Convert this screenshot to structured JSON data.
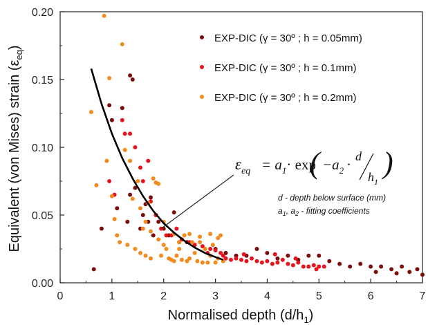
{
  "chart_data": {
    "type": "scatter",
    "xlabel": "Normalised depth (d/h",
    "xlabel_sub": "1",
    "xlabel_close": ")",
    "ylabel": "Equivalent (von Mises) strain (ε",
    "ylabel_sub": "eq",
    "ylabel_close": ")",
    "xlim": [
      0,
      7
    ],
    "ylim": [
      0,
      0.2
    ],
    "x_ticks": [
      "0",
      "1",
      "2",
      "3",
      "4",
      "5",
      "6",
      "7"
    ],
    "y_ticks": [
      "0.00",
      "0.05",
      "0.10",
      "0.15",
      "0.20"
    ],
    "legend_position": "top-right",
    "series": [
      {
        "name": "EXP-DIC (γ = 30º ; h = 0.05mm)",
        "color": "#7b0d0d",
        "points": [
          [
            0.65,
            0.01
          ],
          [
            0.8,
            0.04
          ],
          [
            0.95,
            0.131
          ],
          [
            1.0,
            0.12
          ],
          [
            1.1,
            0.055
          ],
          [
            1.2,
            0.129
          ],
          [
            1.3,
            0.045
          ],
          [
            1.35,
            0.153
          ],
          [
            1.4,
            0.15
          ],
          [
            1.35,
            0.065
          ],
          [
            1.45,
            0.07
          ],
          [
            1.55,
            0.04
          ],
          [
            1.6,
            0.05
          ],
          [
            1.65,
            0.058
          ],
          [
            1.7,
            0.045
          ],
          [
            1.75,
            0.063
          ],
          [
            1.8,
            0.035
          ],
          [
            1.85,
            0.05
          ],
          [
            1.9,
            0.045
          ],
          [
            2.0,
            0.04
          ],
          [
            2.1,
            0.035
          ],
          [
            2.2,
            0.052
          ],
          [
            2.3,
            0.03
          ],
          [
            2.45,
            0.03
          ],
          [
            2.6,
            0.028
          ],
          [
            2.8,
            0.025
          ],
          [
            3.0,
            0.025
          ],
          [
            3.2,
            0.022
          ],
          [
            3.4,
            0.02
          ],
          [
            3.6,
            0.02
          ],
          [
            3.8,
            0.025
          ],
          [
            4.0,
            0.022
          ],
          [
            4.2,
            0.018
          ],
          [
            4.4,
            0.02
          ],
          [
            4.6,
            0.017
          ],
          [
            4.8,
            0.02
          ],
          [
            5.0,
            0.02
          ],
          [
            5.2,
            0.016
          ],
          [
            5.4,
            0.014
          ],
          [
            5.6,
            0.012
          ],
          [
            5.8,
            0.014
          ],
          [
            6.0,
            0.012
          ],
          [
            6.2,
            0.012
          ],
          [
            6.4,
            0.01
          ],
          [
            6.6,
            0.012
          ],
          [
            6.75,
            0.008
          ],
          [
            6.9,
            0.01
          ],
          [
            7.0,
            0.006
          ],
          [
            6.5,
            0.007
          ],
          [
            6.1,
            0.008
          ]
        ]
      },
      {
        "name": "EXP-DIC (γ = 30º ; h = 0.1mm)",
        "color": "#e6141e",
        "points": [
          [
            0.95,
            0.075
          ],
          [
            1.05,
            0.065
          ],
          [
            1.2,
            0.12
          ],
          [
            1.25,
            0.11
          ],
          [
            1.35,
            0.11
          ],
          [
            1.45,
            0.1
          ],
          [
            1.55,
            0.085
          ],
          [
            1.6,
            0.075
          ],
          [
            1.7,
            0.09
          ],
          [
            1.75,
            0.06
          ],
          [
            1.85,
            0.05
          ],
          [
            1.95,
            0.04
          ],
          [
            2.05,
            0.035
          ],
          [
            2.15,
            0.035
          ],
          [
            2.25,
            0.04
          ],
          [
            2.35,
            0.032
          ],
          [
            2.5,
            0.03
          ],
          [
            2.6,
            0.028
          ],
          [
            2.75,
            0.027
          ],
          [
            2.9,
            0.025
          ],
          [
            3.0,
            0.024
          ],
          [
            3.1,
            0.022
          ],
          [
            3.2,
            0.018
          ],
          [
            3.3,
            0.017
          ],
          [
            3.4,
            0.018
          ],
          [
            3.5,
            0.017
          ],
          [
            3.6,
            0.016
          ],
          [
            3.7,
            0.018
          ],
          [
            3.8,
            0.016
          ],
          [
            3.9,
            0.015
          ],
          [
            4.0,
            0.016
          ],
          [
            4.1,
            0.014
          ],
          [
            4.2,
            0.015
          ],
          [
            4.3,
            0.017
          ],
          [
            4.4,
            0.014
          ],
          [
            4.5,
            0.013
          ],
          [
            4.6,
            0.015
          ],
          [
            4.7,
            0.012
          ],
          [
            4.8,
            0.012
          ],
          [
            4.9,
            0.013
          ],
          [
            5.0,
            0.012
          ],
          [
            5.1,
            0.012
          ],
          [
            3.55,
            0.021
          ],
          [
            3.15,
            0.02
          ],
          [
            2.85,
            0.022
          ],
          [
            4.15,
            0.021
          ],
          [
            4.55,
            0.018
          ],
          [
            4.95,
            0.01
          ]
        ]
      },
      {
        "name": "EXP-DIC (γ = 30º ; h = 0.2mm)",
        "color": "#f28a1c",
        "points": [
          [
            0.6,
            0.126
          ],
          [
            0.7,
            0.072
          ],
          [
            0.85,
            0.197
          ],
          [
            0.9,
            0.09
          ],
          [
            0.95,
            0.151
          ],
          [
            1.0,
            0.064
          ],
          [
            1.05,
            0.047
          ],
          [
            1.1,
            0.035
          ],
          [
            1.15,
            0.03
          ],
          [
            1.2,
            0.176
          ],
          [
            1.25,
            0.098
          ],
          [
            1.3,
            0.028
          ],
          [
            1.35,
            0.09
          ],
          [
            1.4,
            0.062
          ],
          [
            1.45,
            0.025
          ],
          [
            1.5,
            0.075
          ],
          [
            1.55,
            0.022
          ],
          [
            1.6,
            0.04
          ],
          [
            1.65,
            0.02
          ],
          [
            1.7,
            0.059
          ],
          [
            1.75,
            0.018
          ],
          [
            1.8,
            0.077
          ],
          [
            1.85,
            0.074
          ],
          [
            1.9,
            0.073
          ],
          [
            1.95,
            0.02
          ],
          [
            2.0,
            0.028
          ],
          [
            2.05,
            0.025
          ],
          [
            2.1,
            0.018
          ],
          [
            2.15,
            0.017
          ],
          [
            2.2,
            0.016
          ],
          [
            2.25,
            0.02
          ],
          [
            2.3,
            0.025
          ],
          [
            2.35,
            0.017
          ],
          [
            2.4,
            0.035
          ],
          [
            2.45,
            0.016
          ],
          [
            2.5,
            0.018
          ],
          [
            2.55,
            0.03
          ],
          [
            2.6,
            0.022
          ],
          [
            2.65,
            0.016
          ],
          [
            2.7,
            0.03
          ],
          [
            2.75,
            0.015
          ],
          [
            2.8,
            0.025
          ],
          [
            2.85,
            0.015
          ],
          [
            2.9,
            0.02
          ],
          [
            2.95,
            0.028
          ],
          [
            3.0,
            0.015
          ],
          [
            3.05,
            0.018
          ],
          [
            3.1,
            0.035
          ],
          [
            3.15,
            0.016
          ],
          [
            1.55,
            0.055
          ],
          [
            1.65,
            0.045
          ],
          [
            1.75,
            0.038
          ],
          [
            1.9,
            0.032
          ],
          [
            2.0,
            0.045
          ],
          [
            2.2,
            0.036
          ],
          [
            2.3,
            0.03
          ],
          [
            2.5,
            0.036
          ],
          [
            2.7,
            0.034
          ],
          [
            2.9,
            0.036
          ],
          [
            3.05,
            0.033
          ]
        ]
      }
    ],
    "fit_curve": {
      "color": "#000000",
      "points": [
        [
          0.6,
          0.158
        ],
        [
          0.8,
          0.132
        ],
        [
          1.0,
          0.11
        ],
        [
          1.2,
          0.092
        ],
        [
          1.4,
          0.077
        ],
        [
          1.6,
          0.064
        ],
        [
          1.8,
          0.053
        ],
        [
          2.0,
          0.044
        ],
        [
          2.2,
          0.037
        ],
        [
          2.4,
          0.031
        ],
        [
          2.6,
          0.026
        ],
        [
          2.8,
          0.022
        ],
        [
          3.0,
          0.019
        ],
        [
          3.15,
          0.017
        ]
      ]
    },
    "annotation": {
      "lhs": "ε",
      "lhs_sub": "eq",
      "rhs_a": "= a",
      "rhs_a_sub": "1",
      "rhs_mid": "· exp",
      "rhs_neg": "−a",
      "rhs_neg_sub": "2",
      "rhs_dot": "·",
      "frac_num": "d",
      "frac_den": "h",
      "frac_den_sub": "1",
      "arrow_to": [
        1.95,
        0.04
      ],
      "note1": "d - depth below surface (mm)",
      "note2_a": "a",
      "note2_a_sub": "1",
      "note2_b": ", a",
      "note2_b_sub": "2",
      "note2_rest": " - fitting coefficients"
    }
  }
}
